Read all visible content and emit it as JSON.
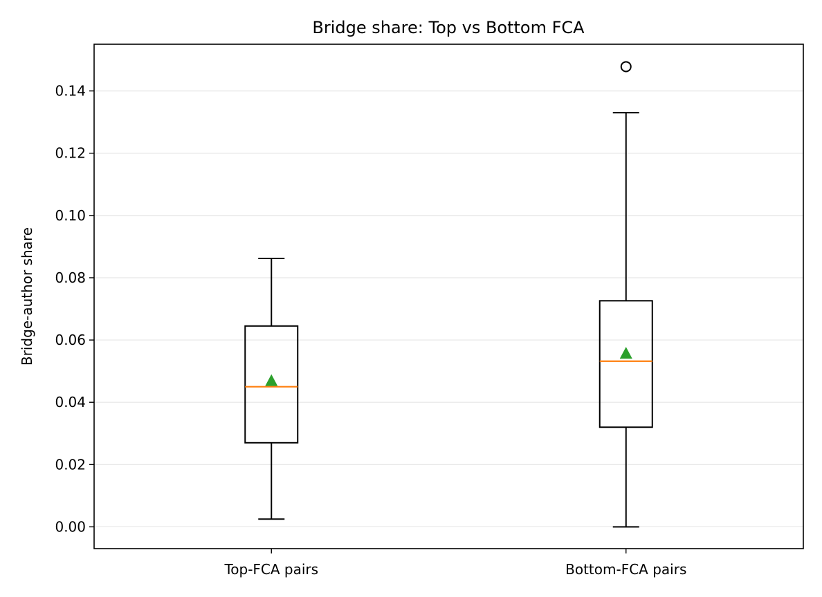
{
  "chart_data": {
    "type": "box",
    "title": "Bridge share: Top vs Bottom FCA",
    "xlabel": "",
    "ylabel": "Bridge-author share",
    "ylim": [
      -0.007,
      0.155
    ],
    "yticks": [
      0.0,
      0.02,
      0.04,
      0.06,
      0.08,
      0.1,
      0.12,
      0.14
    ],
    "ytick_labels": [
      "0.00",
      "0.02",
      "0.04",
      "0.06",
      "0.08",
      "0.10",
      "0.12",
      "0.14"
    ],
    "grid": "y",
    "categories": [
      "Top-FCA pairs",
      "Bottom-FCA pairs"
    ],
    "boxes": [
      {
        "category": "Top-FCA pairs",
        "whisker_low": 0.0025,
        "q1": 0.027,
        "median": 0.045,
        "mean": 0.047,
        "q3": 0.0645,
        "whisker_high": 0.0862,
        "outliers": []
      },
      {
        "category": "Bottom-FCA pairs",
        "whisker_low": 0.0,
        "q1": 0.032,
        "median": 0.0532,
        "mean": 0.0558,
        "q3": 0.0726,
        "whisker_high": 0.133,
        "outliers": [
          0.1478
        ]
      }
    ],
    "colors": {
      "box": "#000000",
      "median": "#ff7f0e",
      "mean": "#2ca02c",
      "grid": "#e6e6e6"
    }
  }
}
